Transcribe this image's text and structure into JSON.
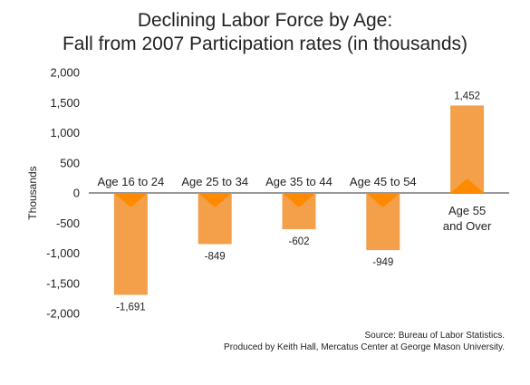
{
  "chart_data": {
    "type": "bar",
    "title": [
      "Declining Labor Force by Age:",
      "Fall from 2007 Participation rates (in thousands)"
    ],
    "ylabel": "Thousands",
    "xlabel": "",
    "categories": [
      "Age 16 to 24",
      "Age 25 to 34",
      "Age 35 to 44",
      "Age 45 to 54",
      "Age 55 and Over"
    ],
    "values": [
      -1691,
      -849,
      -602,
      -949,
      1452
    ],
    "data_labels": [
      "-1,691",
      "-849",
      "-602",
      "-949",
      "1,452"
    ],
    "ylim": [
      -2000,
      2000
    ],
    "yticks": [
      2000,
      1500,
      1000,
      500,
      0,
      -500,
      -1000,
      -1500,
      -2000
    ],
    "ytick_labels": [
      "2,000",
      "1,500",
      "1,000",
      "500",
      "0",
      "-500",
      "-1,000",
      "-1,500",
      "-2,000"
    ],
    "bar_color": "#f4a04a",
    "marker_color": "#ff8a00",
    "grid": false,
    "legend": "none"
  },
  "source": {
    "line1": "Source: Bureau of Labor Statistics.",
    "line2": "Produced by Keith Hall, Mercatus Center at George Mason University."
  }
}
